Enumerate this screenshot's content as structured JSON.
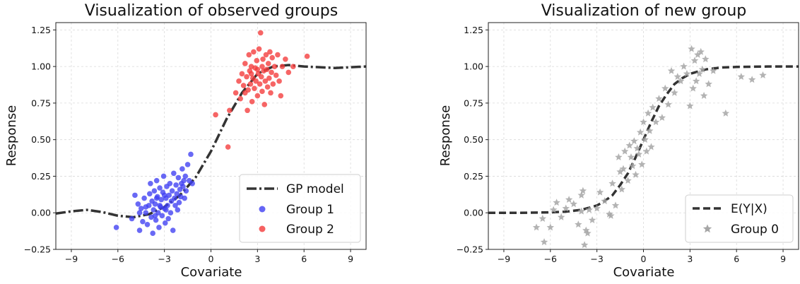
{
  "chart_data": [
    {
      "type": "scatter",
      "title": "Visualization of observed groups",
      "xlabel": "Covariate",
      "ylabel": "Response",
      "xlim": [
        -10,
        10
      ],
      "ylim": [
        -0.25,
        1.3
      ],
      "xticks": [
        -9,
        -6,
        -3,
        0,
        3,
        6,
        9
      ],
      "xtick_labels": [
        "−9",
        "−6",
        "−3",
        "0",
        "3",
        "6",
        "9"
      ],
      "yticks": [
        -0.25,
        0.0,
        0.25,
        0.5,
        0.75,
        1.0,
        1.25
      ],
      "ytick_labels": [
        "−0.25",
        "0.00",
        "0.25",
        "0.50",
        "0.75",
        "1.00",
        "1.25"
      ],
      "grid": true,
      "legend": "lower-right",
      "series": [
        {
          "name": "GP model",
          "kind": "line",
          "style": "dashdot",
          "color": "#333333",
          "x": [
            -10,
            -9,
            -8,
            -7,
            -6,
            -5,
            -4,
            -3,
            -2,
            -1,
            0,
            1,
            2,
            3,
            4,
            5,
            6,
            7,
            8,
            9,
            10
          ],
          "y": [
            -0.005,
            0.01,
            0.02,
            0.005,
            -0.02,
            -0.03,
            -0.01,
            0.04,
            0.12,
            0.24,
            0.42,
            0.64,
            0.82,
            0.95,
            1.0,
            1.01,
            1.0,
            0.995,
            0.99,
            0.995,
            1.0
          ]
        },
        {
          "name": "Group 1",
          "kind": "scatter",
          "color": "#3f3ff2",
          "points": [
            [
              -6.1,
              -0.1
            ],
            [
              -5.1,
              -0.04
            ],
            [
              -4.9,
              0.12
            ],
            [
              -4.7,
              0.06
            ],
            [
              -4.6,
              -0.12
            ],
            [
              -4.5,
              0.03
            ],
            [
              -4.4,
              -0.06
            ],
            [
              -4.3,
              0.1
            ],
            [
              -4.2,
              0.0
            ],
            [
              -4.1,
              -0.08
            ],
            [
              -4.0,
              0.05
            ],
            [
              -3.95,
              0.13
            ],
            [
              -3.9,
              0.2
            ],
            [
              -3.85,
              -0.03
            ],
            [
              -3.8,
              0.08
            ],
            [
              -3.75,
              -0.14
            ],
            [
              -3.7,
              0.02
            ],
            [
              -3.65,
              0.15
            ],
            [
              -3.6,
              0.06
            ],
            [
              -3.55,
              -0.05
            ],
            [
              -3.5,
              0.22
            ],
            [
              -3.45,
              0.11
            ],
            [
              -3.4,
              0.0
            ],
            [
              -3.35,
              -0.1
            ],
            [
              -3.3,
              0.17
            ],
            [
              -3.25,
              0.04
            ],
            [
              -3.2,
              0.09
            ],
            [
              -3.15,
              -0.02
            ],
            [
              -3.1,
              0.14
            ],
            [
              -3.05,
              0.25
            ],
            [
              -3.0,
              0.03
            ],
            [
              -2.95,
              -0.07
            ],
            [
              -2.9,
              0.1
            ],
            [
              -2.85,
              0.18
            ],
            [
              -2.8,
              0.05
            ],
            [
              -2.75,
              -0.04
            ],
            [
              -2.7,
              0.12
            ],
            [
              -2.65,
              0.2
            ],
            [
              -2.6,
              0.0
            ],
            [
              -2.55,
              0.08
            ],
            [
              -2.5,
              0.15
            ],
            [
              -2.45,
              -0.12
            ],
            [
              -2.4,
              0.27
            ],
            [
              -2.35,
              0.1
            ],
            [
              -2.3,
              0.05
            ],
            [
              -2.25,
              0.19
            ],
            [
              -2.2,
              0.13
            ],
            [
              -2.15,
              0.02
            ],
            [
              -2.1,
              0.24
            ],
            [
              -2.05,
              0.07
            ],
            [
              -2.0,
              0.16
            ],
            [
              -1.95,
              0.11
            ],
            [
              -1.9,
              0.2
            ],
            [
              -1.85,
              0.3
            ],
            [
              -1.8,
              0.18
            ],
            [
              -1.75,
              0.22
            ],
            [
              -1.7,
              0.1
            ],
            [
              -1.65,
              0.25
            ],
            [
              -1.6,
              0.15
            ],
            [
              -1.5,
              0.33
            ],
            [
              -1.4,
              0.22
            ],
            [
              -1.3,
              0.4
            ],
            [
              -1.2,
              0.2
            ],
            [
              -3.6,
              -0.02
            ],
            [
              -3.3,
              0.05
            ],
            [
              -4.2,
              0.04
            ],
            [
              -3.0,
              0.12
            ],
            [
              -2.9,
              0.02
            ],
            [
              -3.5,
              0.1
            ],
            [
              -4.6,
              0.0
            ]
          ]
        },
        {
          "name": "Group 2",
          "kind": "scatter",
          "color": "#f43a3a",
          "points": [
            [
              0.3,
              0.67
            ],
            [
              1.1,
              0.45
            ],
            [
              1.2,
              0.7
            ],
            [
              1.6,
              0.82
            ],
            [
              1.8,
              0.9
            ],
            [
              1.9,
              0.78
            ],
            [
              2.0,
              0.95
            ],
            [
              2.1,
              0.87
            ],
            [
              2.2,
              1.02
            ],
            [
              2.3,
              0.93
            ],
            [
              2.35,
              0.7
            ],
            [
              2.4,
              0.84
            ],
            [
              2.45,
              1.08
            ],
            [
              2.5,
              0.97
            ],
            [
              2.55,
              0.88
            ],
            [
              2.6,
              1.0
            ],
            [
              2.65,
              0.76
            ],
            [
              2.7,
              0.92
            ],
            [
              2.75,
              1.1
            ],
            [
              2.8,
              0.85
            ],
            [
              2.85,
              0.99
            ],
            [
              2.9,
              0.9
            ],
            [
              2.95,
              1.04
            ],
            [
              3.0,
              0.8
            ],
            [
              3.05,
              0.95
            ],
            [
              3.1,
              1.12
            ],
            [
              3.15,
              0.88
            ],
            [
              3.2,
              1.23
            ],
            [
              3.25,
              0.93
            ],
            [
              3.3,
              0.83
            ],
            [
              3.35,
              1.05
            ],
            [
              3.4,
              0.97
            ],
            [
              3.45,
              0.74
            ],
            [
              3.5,
              0.9
            ],
            [
              3.55,
              1.08
            ],
            [
              3.6,
              0.98
            ],
            [
              3.65,
              0.86
            ],
            [
              3.7,
              1.02
            ],
            [
              3.75,
              0.92
            ],
            [
              3.8,
              1.1
            ],
            [
              3.85,
              0.82
            ],
            [
              3.9,
              0.96
            ],
            [
              3.95,
              1.06
            ],
            [
              4.0,
              0.88
            ],
            [
              4.1,
              1.0
            ],
            [
              4.2,
              0.94
            ],
            [
              4.3,
              1.08
            ],
            [
              4.4,
              0.9
            ],
            [
              4.5,
              0.8
            ],
            [
              4.6,
              1.0
            ],
            [
              4.8,
              1.05
            ],
            [
              5.0,
              0.96
            ],
            [
              5.3,
              1.0
            ],
            [
              6.2,
              1.07
            ],
            [
              2.6,
              0.95
            ],
            [
              3.0,
              0.98
            ],
            [
              3.3,
              1.0
            ],
            [
              2.2,
              0.82
            ]
          ]
        }
      ]
    },
    {
      "type": "scatter",
      "title": "Visualization of new group",
      "xlabel": "Covariate",
      "ylabel": "Response",
      "xlim": [
        -10,
        10
      ],
      "ylim": [
        -0.25,
        1.3
      ],
      "xticks": [
        -9,
        -6,
        -3,
        0,
        3,
        6,
        9
      ],
      "xtick_labels": [
        "−9",
        "−6",
        "−3",
        "0",
        "3",
        "6",
        "9"
      ],
      "yticks": [
        -0.25,
        0.0,
        0.25,
        0.5,
        0.75,
        1.0,
        1.25
      ],
      "ytick_labels": [
        "−0.25",
        "0.00",
        "0.25",
        "0.50",
        "0.75",
        "1.00",
        "1.25"
      ],
      "grid": true,
      "legend": "lower-right",
      "series": [
        {
          "name": "E(Y|X)",
          "kind": "line",
          "style": "dashed",
          "color": "#333333",
          "x": [
            -10,
            -8,
            -6,
            -5,
            -4,
            -3,
            -2.5,
            -2,
            -1.5,
            -1,
            -0.5,
            0,
            0.5,
            1,
            1.5,
            2,
            2.5,
            3,
            4,
            5,
            6,
            8,
            10
          ],
          "y": [
            0.0,
            0.0,
            0.003,
            0.008,
            0.02,
            0.05,
            0.08,
            0.12,
            0.19,
            0.27,
            0.38,
            0.5,
            0.62,
            0.73,
            0.81,
            0.88,
            0.92,
            0.95,
            0.98,
            0.993,
            0.997,
            1.0,
            1.0
          ]
        },
        {
          "name": "Group 0",
          "kind": "scatter",
          "marker": "star",
          "color": "#a6a6a6",
          "points": [
            [
              -6.4,
              -0.2
            ],
            [
              -6.9,
              -0.1
            ],
            [
              -6.5,
              -0.04
            ],
            [
              -6.0,
              -0.1
            ],
            [
              -5.8,
              0.02
            ],
            [
              -5.6,
              0.07
            ],
            [
              -5.3,
              -0.03
            ],
            [
              -5.0,
              0.03
            ],
            [
              -4.8,
              0.09
            ],
            [
              -4.5,
              0.06
            ],
            [
              -4.2,
              -0.08
            ],
            [
              -4.0,
              0.01
            ],
            [
              -3.9,
              0.15
            ],
            [
              -3.8,
              -0.22
            ],
            [
              -3.7,
              -0.12
            ],
            [
              -3.5,
              0.02
            ],
            [
              -3.3,
              -0.05
            ],
            [
              -3.0,
              0.03
            ],
            [
              -2.8,
              0.14
            ],
            [
              -2.5,
              0.08
            ],
            [
              -2.2,
              -0.01
            ],
            [
              -2.0,
              0.2
            ],
            [
              -1.8,
              0.05
            ],
            [
              -1.6,
              0.38
            ],
            [
              -1.5,
              0.28
            ],
            [
              -1.4,
              0.16
            ],
            [
              -1.3,
              0.3
            ],
            [
              -1.2,
              0.42
            ],
            [
              -1.0,
              0.22
            ],
            [
              -0.9,
              0.46
            ],
            [
              -0.8,
              0.38
            ],
            [
              -0.7,
              0.32
            ],
            [
              -0.6,
              0.49
            ],
            [
              -0.5,
              0.26
            ],
            [
              -0.4,
              0.44
            ],
            [
              -0.3,
              0.4
            ],
            [
              -0.2,
              0.55
            ],
            [
              -0.1,
              0.33
            ],
            [
              0.0,
              0.62
            ],
            [
              0.1,
              0.5
            ],
            [
              0.2,
              0.42
            ],
            [
              0.3,
              0.68
            ],
            [
              0.4,
              0.56
            ],
            [
              0.5,
              0.45
            ],
            [
              0.6,
              0.72
            ],
            [
              0.8,
              0.62
            ],
            [
              1.0,
              0.78
            ],
            [
              1.2,
              0.65
            ],
            [
              1.4,
              0.85
            ],
            [
              1.6,
              0.74
            ],
            [
              1.8,
              0.97
            ],
            [
              2.0,
              0.82
            ],
            [
              2.2,
              0.93
            ],
            [
              2.4,
              0.9
            ],
            [
              2.6,
              1.0
            ],
            [
              2.8,
              0.95
            ],
            [
              3.0,
              0.73
            ],
            [
              3.1,
              1.12
            ],
            [
              3.2,
              0.85
            ],
            [
              3.3,
              1.04
            ],
            [
              3.4,
              0.9
            ],
            [
              3.5,
              1.08
            ],
            [
              3.6,
              0.95
            ],
            [
              3.7,
              1.1
            ],
            [
              3.8,
              0.98
            ],
            [
              3.9,
              0.8
            ],
            [
              4.0,
              1.05
            ],
            [
              4.2,
              0.88
            ],
            [
              4.5,
              0.97
            ],
            [
              5.3,
              0.68
            ],
            [
              6.3,
              0.93
            ],
            [
              7.0,
              0.91
            ],
            [
              7.7,
              0.94
            ],
            [
              -4.0,
              0.12
            ],
            [
              -2.1,
              -0.02
            ],
            [
              -3.6,
              -0.14
            ]
          ]
        }
      ]
    }
  ]
}
